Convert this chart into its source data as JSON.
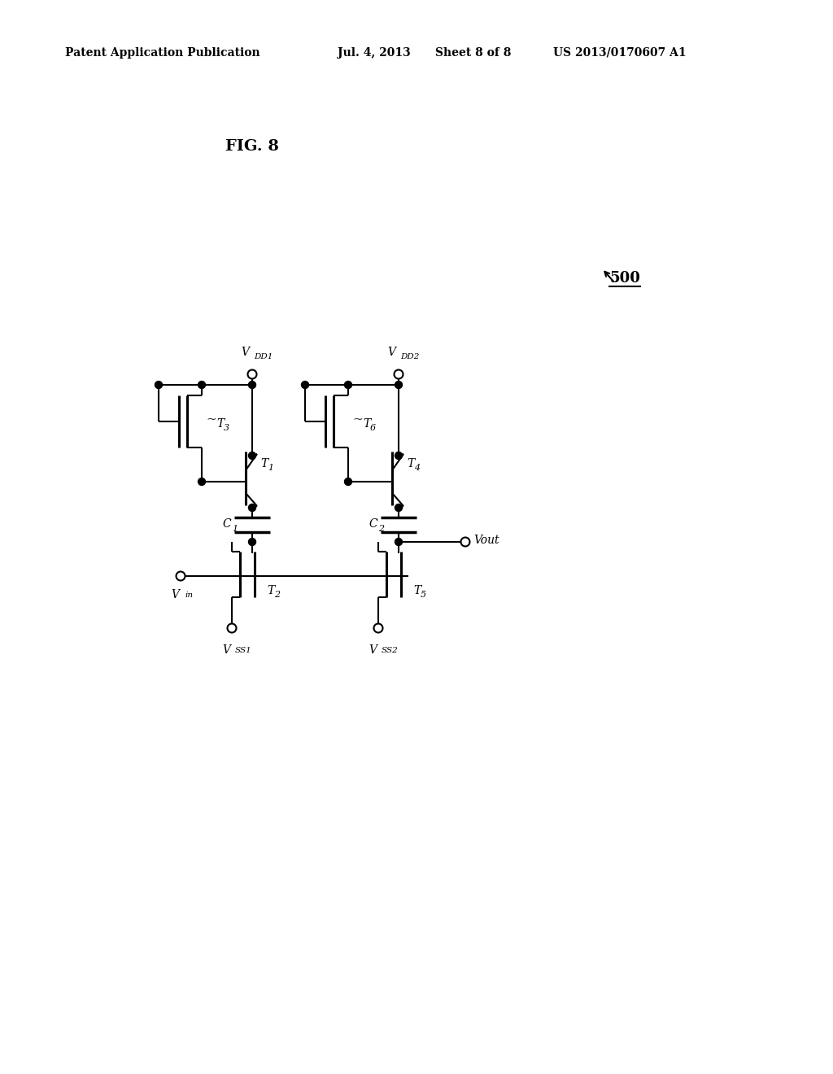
{
  "header_left": "Patent Application Publication",
  "header_date": "Jul. 4, 2013",
  "header_sheet": "Sheet 8 of 8",
  "header_patent": "US 2013/0170607 A1",
  "fig_label": "FIG. 8",
  "circuit_num": "500",
  "bg_color": "#ffffff",
  "lc": "#000000",
  "lw": 1.5,
  "node_r": 4.5,
  "term_r": 5.5
}
